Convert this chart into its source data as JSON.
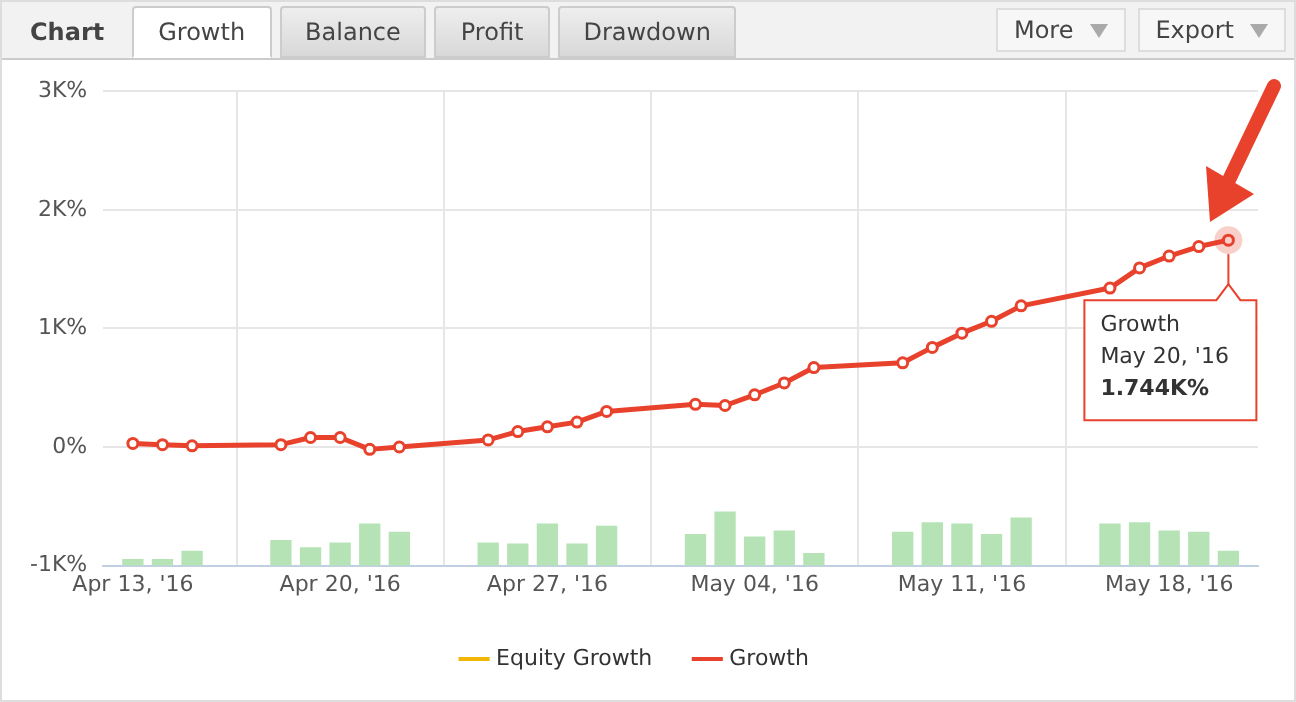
{
  "chart_data": {
    "type": "line",
    "title": "Chart",
    "annotations": [
      "Growth",
      "Balance",
      "Profit",
      "Drawdown",
      "More",
      "Export",
      {
        "text": "Growth\nMay 20, '16\n1.744K%",
        "x": "2016-05-20",
        "y": 1744
      }
    ],
    "x": [
      "2016-04-13",
      "2016-04-14",
      "2016-04-15",
      "2016-04-18",
      "2016-04-19",
      "2016-04-20",
      "2016-04-21",
      "2016-04-22",
      "2016-04-25",
      "2016-04-26",
      "2016-04-27",
      "2016-04-28",
      "2016-04-29",
      "2016-05-02",
      "2016-05-03",
      "2016-05-04",
      "2016-05-05",
      "2016-05-06",
      "2016-05-09",
      "2016-05-10",
      "2016-05-11",
      "2016-05-12",
      "2016-05-13",
      "2016-05-16",
      "2016-05-17",
      "2016-05-18",
      "2016-05-19",
      "2016-05-20"
    ],
    "series": [
      {
        "type": "bar",
        "color": "#b5e3b5",
        "base": [
          -1000,
          -1000,
          -1000,
          -1000,
          -1000,
          -1000,
          -1000,
          -1000,
          -1000,
          -1000,
          -1000,
          -1000,
          -1000,
          -1000,
          -1000,
          -1000,
          -1000,
          -1000,
          -1000,
          -1000,
          -1000,
          -1000,
          -1000,
          -1000,
          -1000,
          -1000,
          -1000,
          -1000
        ],
        "values": [
          50,
          50,
          120,
          210,
          150,
          190,
          350,
          280,
          190,
          180,
          350,
          180,
          330,
          260,
          450,
          240,
          290,
          100,
          280,
          360,
          350,
          260,
          400,
          350,
          360,
          290,
          280,
          120
        ]
      },
      {
        "name": "Equity Growth",
        "color": "#f2b705",
        "values": [
          null,
          null,
          null,
          null,
          null,
          null,
          null,
          null,
          null,
          null,
          null,
          null,
          null,
          null,
          null,
          null,
          null,
          null,
          null,
          null,
          null,
          null,
          null,
          null,
          null,
          null,
          null,
          null
        ]
      },
      {
        "name": "Growth",
        "color": "#e8412c",
        "values": [
          30,
          20,
          10,
          20,
          80,
          80,
          -20,
          0,
          60,
          130,
          170,
          210,
          300,
          360,
          350,
          440,
          540,
          670,
          710,
          840,
          960,
          1060,
          1190,
          1340,
          1510,
          1610,
          1690,
          1744
        ]
      }
    ],
    "ylim": [
      -1000,
      3000
    ],
    "yticks": [
      {
        "value": -1000,
        "label": "-1K%"
      },
      {
        "value": 0,
        "label": "0%"
      },
      {
        "value": 1000,
        "label": "1K%"
      },
      {
        "value": 2000,
        "label": "2K%"
      },
      {
        "value": 3000,
        "label": "3K%"
      }
    ],
    "xlim": [
      "2016-04-12",
      "2016-05-21"
    ],
    "xticks": [
      {
        "value": "2016-04-13",
        "label": "Apr 13, '16"
      },
      {
        "value": "2016-04-20",
        "label": "Apr 20, '16"
      },
      {
        "value": "2016-04-27",
        "label": "Apr 27, '16"
      },
      {
        "value": "2016-05-04",
        "label": "May 04, '16"
      },
      {
        "value": "2016-05-11",
        "label": "May 11, '16"
      },
      {
        "value": "2016-05-18",
        "label": "May 18, '16"
      }
    ],
    "grid": true,
    "legend": "bottom",
    "marker": "circle",
    "line_style": "solid"
  }
}
